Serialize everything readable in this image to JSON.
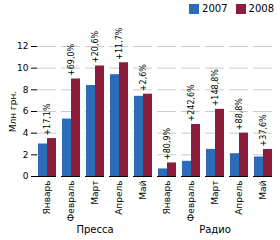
{
  "chart_data": {
    "type": "bar",
    "categories": [
      "Январь",
      "Февраль",
      "Март",
      "Апрель",
      "Май",
      "Январь",
      "Февраль",
      "Март",
      "Апрель",
      "Май"
    ],
    "category_groups": [
      "Пресса",
      "Пресса",
      "Пресса",
      "Пресса",
      "Пресса",
      "Радио",
      "Радио",
      "Радио",
      "Радио",
      "Радио"
    ],
    "y_label": "Млн грн.",
    "series": [
      {
        "name": "2007",
        "color": "#2b6cb8",
        "values": [
          3.0,
          5.3,
          8.4,
          9.4,
          7.4,
          0.7,
          1.4,
          2.5,
          2.1,
          1.8
        ]
      },
      {
        "name": "2008",
        "color": "#8c1c3c",
        "values": [
          3.5,
          9.0,
          10.2,
          10.5,
          7.6,
          1.25,
          4.8,
          6.2,
          4.0,
          2.5
        ]
      }
    ],
    "annotations": [
      "+17,1%",
      "+69,0%",
      "+20,6%",
      "+11,7%",
      "+2,6%",
      "+80,9%",
      "+242,6%",
      "+148,8%",
      "+88,8%",
      "+37,6%"
    ],
    "ylim": [
      0,
      12
    ],
    "yticks": [
      0,
      2,
      4,
      6,
      8,
      10,
      12
    ],
    "grid": true,
    "legend": "top-right"
  }
}
